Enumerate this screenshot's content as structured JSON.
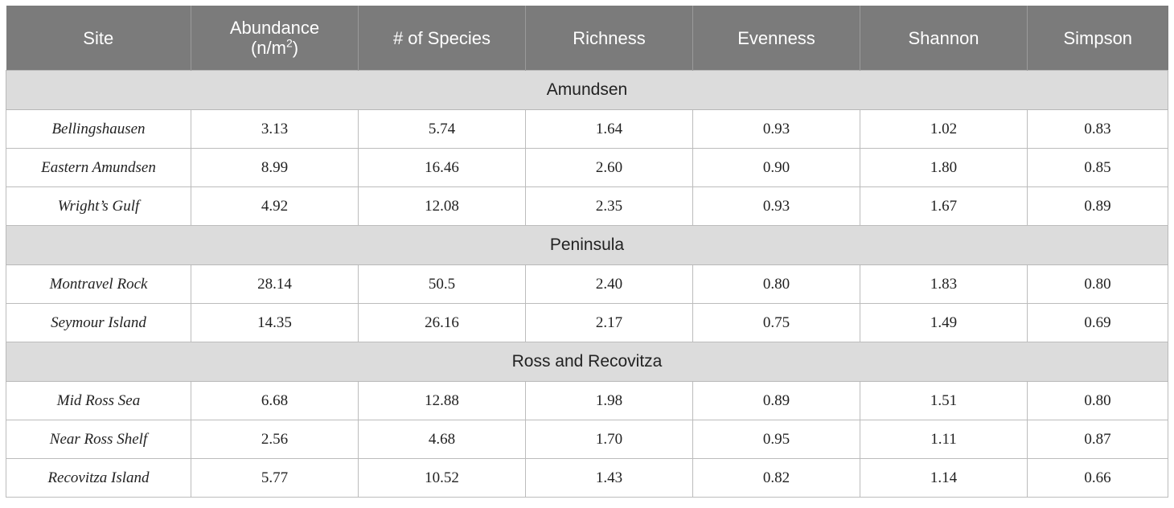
{
  "table": {
    "headers": {
      "site": "Site",
      "abundance_line1": "Abundance",
      "abundance_line2_pre": "(n/m",
      "abundance_sup": "2",
      "abundance_line2_post": ")",
      "species": "# of Species",
      "richness": "Richness",
      "evenness": "Evenness",
      "shannon": "Shannon",
      "simpson": "Simpson"
    },
    "groups": [
      {
        "name": "Amundsen",
        "rows": [
          {
            "site": "Bellingshausen",
            "abundance": "3.13",
            "species": "5.74",
            "richness": "1.64",
            "evenness": "0.93",
            "shannon": "1.02",
            "simpson": "0.83"
          },
          {
            "site": "Eastern Amundsen",
            "abundance": "8.99",
            "species": "16.46",
            "richness": "2.60",
            "evenness": "0.90",
            "shannon": "1.80",
            "simpson": "0.85"
          },
          {
            "site": "Wright’s Gulf",
            "abundance": "4.92",
            "species": "12.08",
            "richness": "2.35",
            "evenness": "0.93",
            "shannon": "1.67",
            "simpson": "0.89"
          }
        ]
      },
      {
        "name": "Peninsula",
        "rows": [
          {
            "site": "Montravel Rock",
            "abundance": "28.14",
            "species": "50.5",
            "richness": "2.40",
            "evenness": "0.80",
            "shannon": "1.83",
            "simpson": "0.80"
          },
          {
            "site": "Seymour Island",
            "abundance": "14.35",
            "species": "26.16",
            "richness": "2.17",
            "evenness": "0.75",
            "shannon": "1.49",
            "simpson": "0.69"
          }
        ]
      },
      {
        "name": "Ross and Recovitza",
        "rows": [
          {
            "site": "Mid Ross Sea",
            "abundance": "6.68",
            "species": "12.88",
            "richness": "1.98",
            "evenness": "0.89",
            "shannon": "1.51",
            "simpson": "0.80"
          },
          {
            "site": "Near Ross Shelf",
            "abundance": "2.56",
            "species": "4.68",
            "richness": "1.70",
            "evenness": "0.95",
            "shannon": "1.11",
            "simpson": "0.87"
          },
          {
            "site": "Recovitza Island",
            "abundance": "5.77",
            "species": "10.52",
            "richness": "1.43",
            "evenness": "0.82",
            "shannon": "1.14",
            "simpson": "0.66"
          }
        ]
      }
    ]
  }
}
